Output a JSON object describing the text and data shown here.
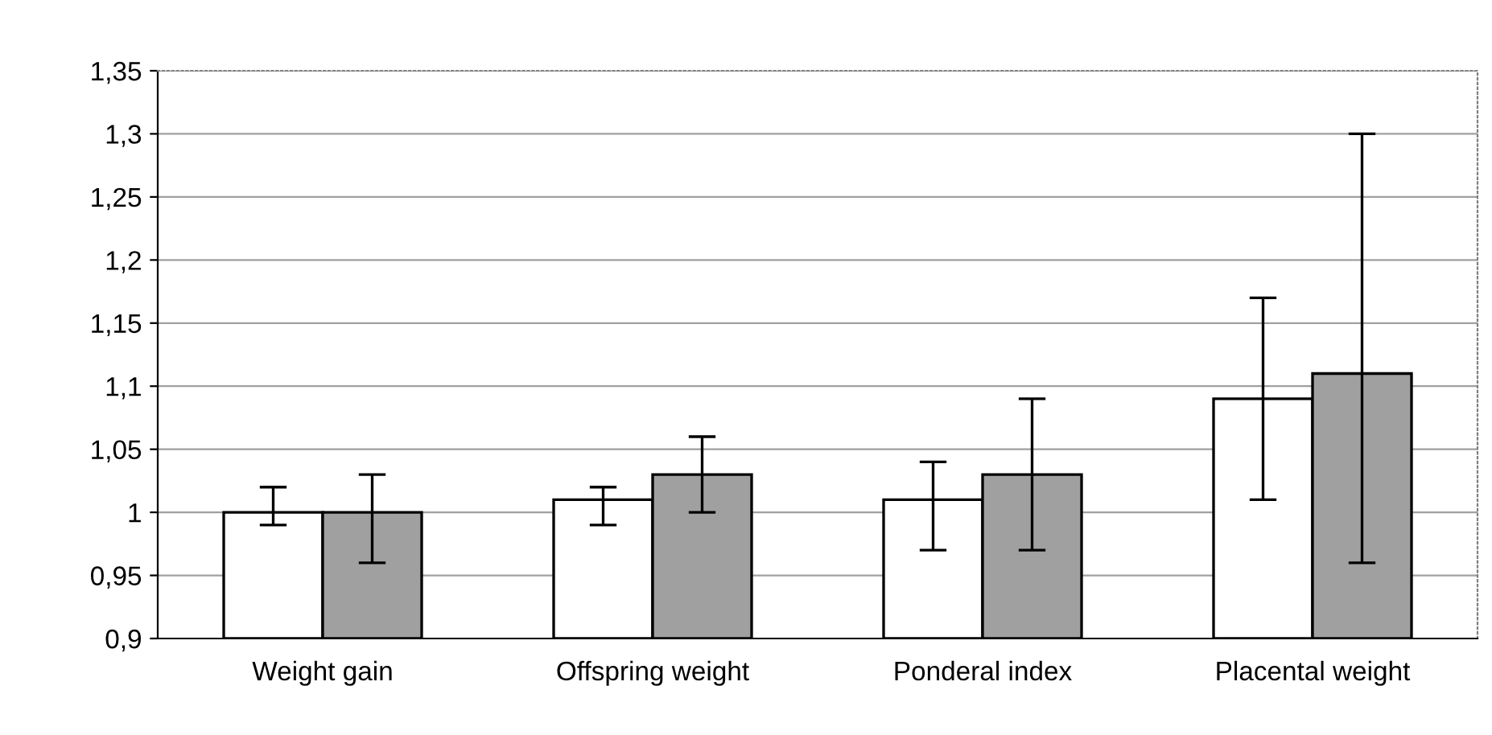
{
  "chart_data": {
    "type": "bar",
    "categories": [
      "Weight gain",
      "Offspring weight",
      "Ponderal index",
      "Placental weight"
    ],
    "series": [
      {
        "color": "#ffffff",
        "values": [
          1.0,
          1.01,
          1.01,
          1.09
        ],
        "errors": [
          [
            0.99,
            1.02
          ],
          [
            0.99,
            1.02
          ],
          [
            0.97,
            1.04
          ],
          [
            1.01,
            1.17
          ]
        ]
      },
      {
        "color": "#a0a0a0",
        "values": [
          1.0,
          1.03,
          1.03,
          1.11
        ],
        "errors": [
          [
            0.96,
            1.03
          ],
          [
            1.0,
            1.06
          ],
          [
            0.97,
            1.09
          ],
          [
            0.96,
            1.3
          ]
        ]
      }
    ],
    "ylim": [
      0.9,
      1.35
    ],
    "yticks": [
      {
        "value": 0.9,
        "label": "0,9"
      },
      {
        "value": 0.95,
        "label": "0,95"
      },
      {
        "value": 1,
        "label": "1"
      },
      {
        "value": 1.05,
        "label": "1,05"
      },
      {
        "value": 1.1,
        "label": "1,1"
      },
      {
        "value": 1.15,
        "label": "1,15"
      },
      {
        "value": 1.2,
        "label": "1,2"
      },
      {
        "value": 1.25,
        "label": "1,25"
      },
      {
        "value": 1.3,
        "label": "1,3"
      },
      {
        "value": 1.35,
        "label": "1,35"
      }
    ],
    "grid": "y",
    "legend": false
  }
}
